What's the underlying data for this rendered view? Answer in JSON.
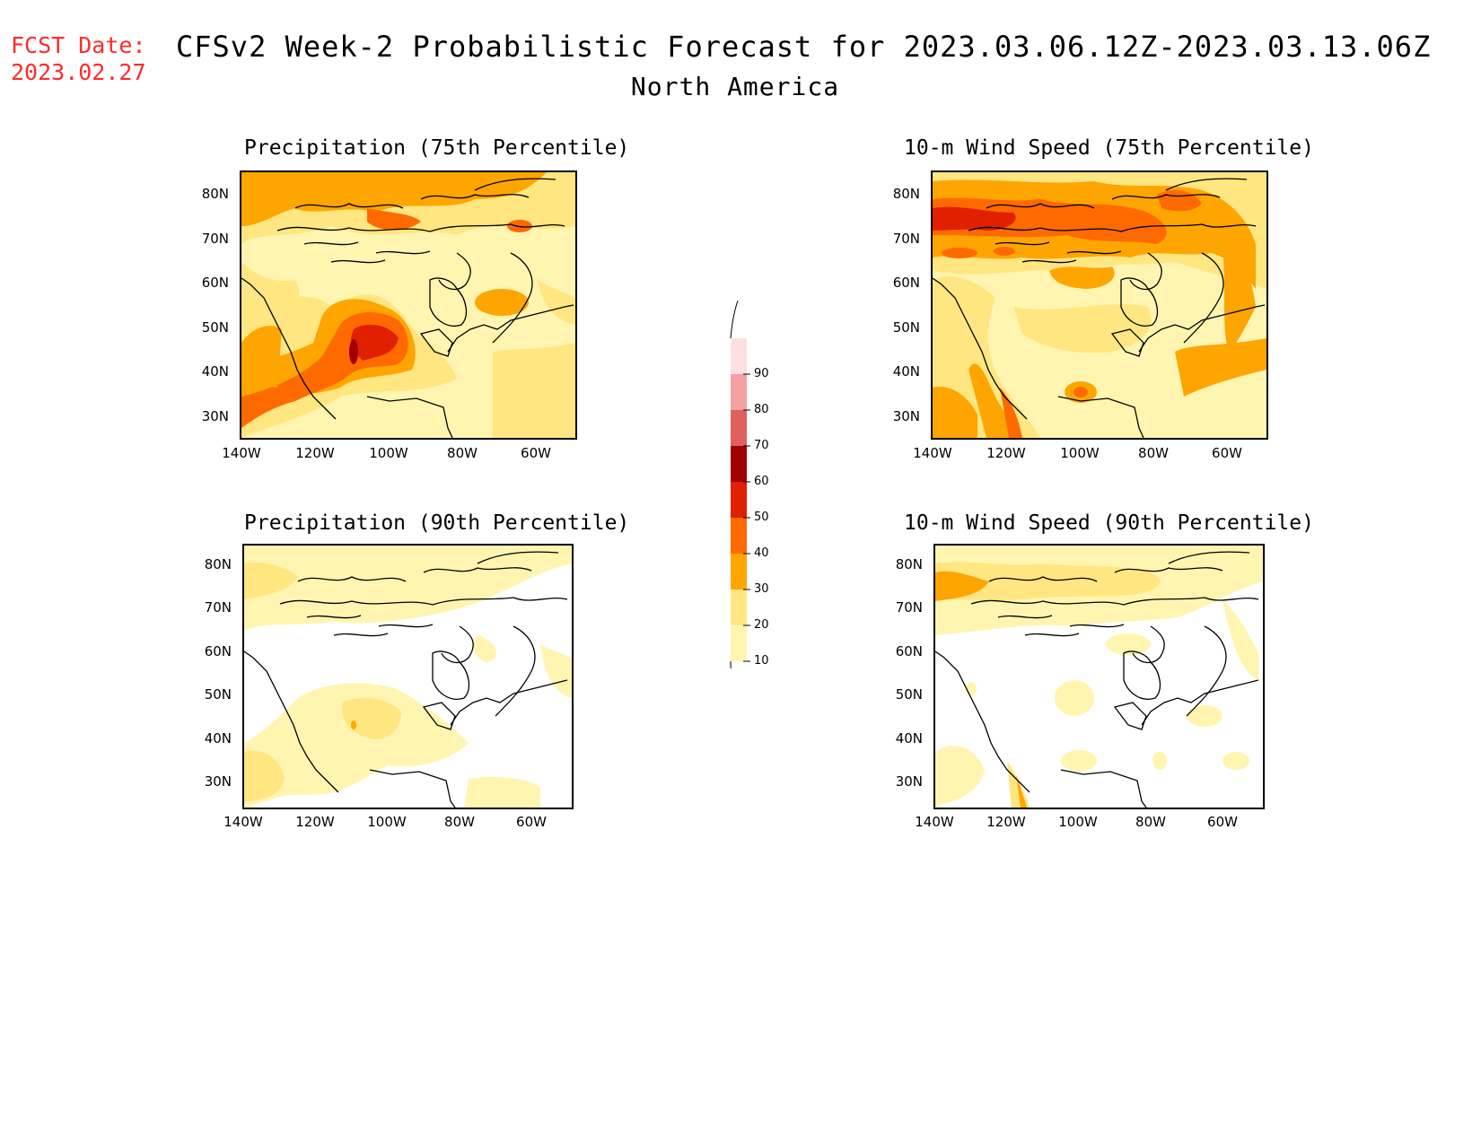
{
  "header": {
    "fcst_label": "FCST Date:",
    "fcst_date": "2023.02.27",
    "title": "CFSv2 Week-2 Probabilistic Forecast for 2023.03.06.12Z-2023.03.13.06Z",
    "subtitle": "North America"
  },
  "axes": {
    "lat_labels": [
      "80N",
      "70N",
      "60N",
      "50N",
      "40N",
      "30N"
    ],
    "lon_labels": [
      "140W",
      "120W",
      "100W",
      "80W",
      "60W"
    ]
  },
  "panels": [
    {
      "id": "precip75",
      "title": "Precipitation (75th Percentile)"
    },
    {
      "id": "wind75",
      "title": "10-m Wind Speed (75th Percentile)"
    },
    {
      "id": "precip90",
      "title": "Precipitation (90th Percentile)"
    },
    {
      "id": "wind90",
      "title": "10-m Wind Speed (90th Percentile)"
    }
  ],
  "colorbar": {
    "levels": [
      "10",
      "20",
      "30",
      "40",
      "50",
      "60",
      "70",
      "80",
      "90"
    ],
    "colors": [
      "#fff5b0",
      "#ffe680",
      "#ffa500",
      "#ff6a00",
      "#e02000",
      "#a00000",
      "#e06060",
      "#f4a0a0",
      "#ffe0e0"
    ]
  },
  "colors": {
    "light_yellow": "#fff5b0",
    "yellow": "#ffe680",
    "orange": "#ffa500",
    "dark_orange": "#ff6a00",
    "red": "#e02000",
    "dark_red": "#a00000",
    "fcst_red": "#ff2a2a"
  }
}
